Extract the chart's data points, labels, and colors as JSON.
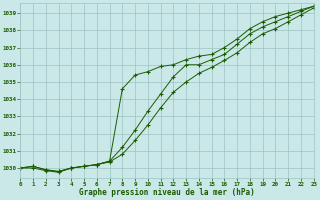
{
  "title": "Graphe pression niveau de la mer (hPa)",
  "background_color": "#cbe8e8",
  "grid_color": "#9cc4c4",
  "line_color": "#1a5c00",
  "x_min": 0,
  "x_max": 23,
  "y_min": 1029.4,
  "y_max": 1039.6,
  "yticks": [
    1030,
    1031,
    1032,
    1033,
    1034,
    1035,
    1036,
    1037,
    1038,
    1039
  ],
  "xticks": [
    0,
    1,
    2,
    3,
    4,
    5,
    6,
    7,
    8,
    9,
    10,
    11,
    12,
    13,
    14,
    15,
    16,
    17,
    18,
    19,
    20,
    21,
    22,
    23
  ],
  "series1": {
    "x": [
      0,
      1,
      2,
      3,
      4,
      5,
      6,
      7,
      8,
      9,
      10,
      11,
      12,
      13,
      14,
      15,
      16,
      17,
      18,
      19,
      20,
      21,
      22,
      23
    ],
    "y": [
      1030.0,
      1030.1,
      1029.9,
      1029.8,
      1030.0,
      1030.1,
      1030.2,
      1030.4,
      1034.6,
      1035.4,
      1035.6,
      1035.9,
      1036.0,
      1036.3,
      1036.5,
      1036.6,
      1037.0,
      1037.5,
      1038.1,
      1038.5,
      1038.8,
      1039.0,
      1039.2,
      1039.4
    ]
  },
  "series2": {
    "x": [
      0,
      1,
      2,
      3,
      4,
      5,
      6,
      7,
      8,
      9,
      10,
      11,
      12,
      13,
      14,
      15,
      16,
      17,
      18,
      19,
      20,
      21,
      22,
      23
    ],
    "y": [
      1030.0,
      1030.1,
      1029.9,
      1029.8,
      1030.0,
      1030.1,
      1030.2,
      1030.4,
      1031.2,
      1032.2,
      1033.3,
      1034.3,
      1035.3,
      1036.0,
      1036.0,
      1036.3,
      1036.6,
      1037.2,
      1037.8,
      1038.2,
      1038.5,
      1038.8,
      1039.1,
      1039.4
    ]
  },
  "series3": {
    "x": [
      0,
      1,
      2,
      3,
      4,
      5,
      6,
      7,
      8,
      9,
      10,
      11,
      12,
      13,
      14,
      15,
      16,
      17,
      18,
      19,
      20,
      21,
      22,
      23
    ],
    "y": [
      1030.0,
      1030.0,
      1029.85,
      1029.75,
      1030.0,
      1030.1,
      1030.2,
      1030.35,
      1030.8,
      1031.6,
      1032.5,
      1033.5,
      1034.4,
      1035.0,
      1035.5,
      1035.85,
      1036.25,
      1036.7,
      1037.3,
      1037.8,
      1038.1,
      1038.5,
      1038.9,
      1039.3
    ]
  }
}
